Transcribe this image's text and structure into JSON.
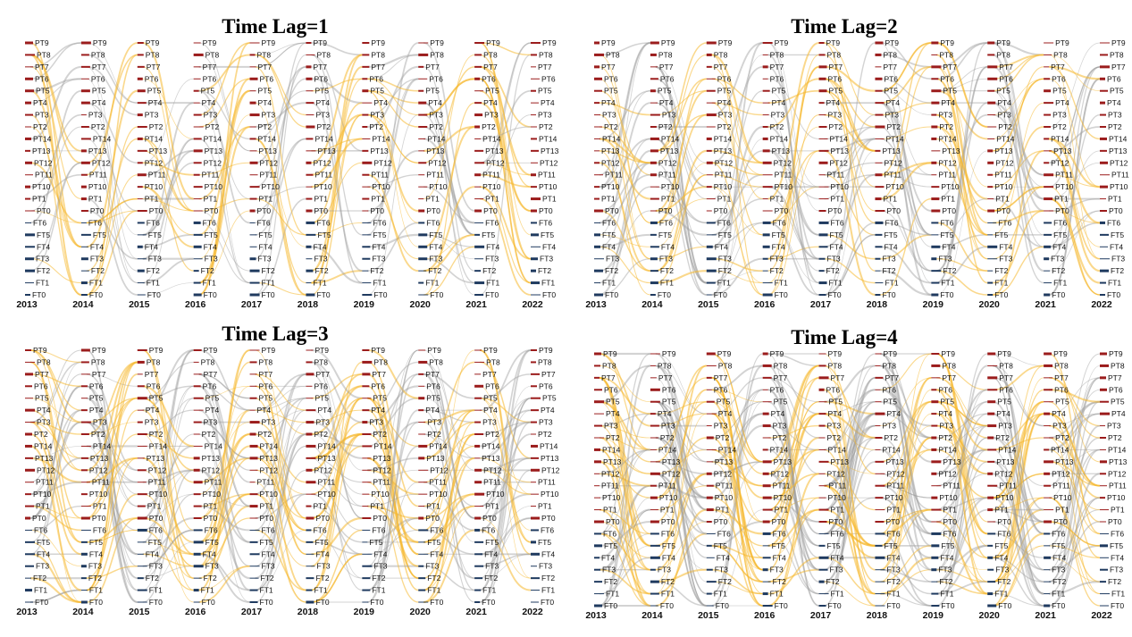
{
  "chart_data": [
    {
      "type": "sankey",
      "title": "Time Lag=1",
      "years": [
        "2013",
        "2014",
        "2015",
        "2016",
        "2017",
        "2018",
        "2019",
        "2020",
        "2021",
        "2022"
      ],
      "nodes": [
        "PT9",
        "PT8",
        "PT7",
        "PT6",
        "PT5",
        "PT4",
        "PT3",
        "PT2",
        "PT14",
        "PT13",
        "PT12",
        "PT11",
        "PT10",
        "PT1",
        "PT0",
        "FT6",
        "FT5",
        "FT4",
        "FT3",
        "FT2",
        "FT1",
        "FT0"
      ],
      "link_colors": {
        "forward": "#f5b82e",
        "backward": "#9e9e9e"
      },
      "node_colors": {
        "PT": "#9b1c1c",
        "FT": "#1f3a5f"
      },
      "lag": 1
    },
    {
      "type": "sankey",
      "title": "Time Lag=2",
      "years": [
        "2013",
        "2014",
        "2015",
        "2016",
        "2017",
        "2018",
        "2019",
        "2020",
        "2021",
        "2022"
      ],
      "nodes": [
        "PT9",
        "PT8",
        "PT7",
        "PT6",
        "PT5",
        "PT4",
        "PT3",
        "PT2",
        "PT14",
        "PT13",
        "PT12",
        "PT11",
        "PT10",
        "PT1",
        "PT0",
        "FT6",
        "FT5",
        "FT4",
        "FT3",
        "FT2",
        "FT1",
        "FT0"
      ],
      "link_colors": {
        "forward": "#f5b82e",
        "backward": "#9e9e9e"
      },
      "node_colors": {
        "PT": "#9b1c1c",
        "FT": "#1f3a5f"
      },
      "lag": 2
    },
    {
      "type": "sankey",
      "title": "Time Lag=3",
      "years": [
        "2013",
        "2014",
        "2015",
        "2016",
        "2017",
        "2018",
        "2019",
        "2020",
        "2021",
        "2022"
      ],
      "nodes": [
        "PT9",
        "PT8",
        "PT7",
        "PT6",
        "PT5",
        "PT4",
        "PT3",
        "PT2",
        "PT14",
        "PT13",
        "PT12",
        "PT11",
        "PT10",
        "PT1",
        "PT0",
        "FT6",
        "FT5",
        "FT4",
        "FT3",
        "FT2",
        "FT1",
        "FT0"
      ],
      "link_colors": {
        "forward": "#f5b82e",
        "backward": "#9e9e9e"
      },
      "node_colors": {
        "PT": "#9b1c1c",
        "FT": "#1f3a5f"
      },
      "lag": 3
    },
    {
      "type": "sankey",
      "title": "Time Lag=4",
      "years": [
        "2013",
        "2014",
        "2015",
        "2016",
        "2017",
        "2018",
        "2019",
        "2020",
        "2021",
        "2022"
      ],
      "nodes": [
        "PT9",
        "PT8",
        "PT7",
        "PT6",
        "PT5",
        "PT4",
        "PT3",
        "PT2",
        "PT14",
        "PT13",
        "PT12",
        "PT11",
        "PT10",
        "PT1",
        "PT0",
        "FT6",
        "FT5",
        "FT4",
        "FT3",
        "FT2",
        "FT1",
        "FT0"
      ],
      "link_colors": {
        "forward": "#f5b82e",
        "backward": "#9e9e9e"
      },
      "node_colors": {
        "PT": "#9b1c1c",
        "FT": "#1f3a5f"
      },
      "lag": 4
    }
  ]
}
